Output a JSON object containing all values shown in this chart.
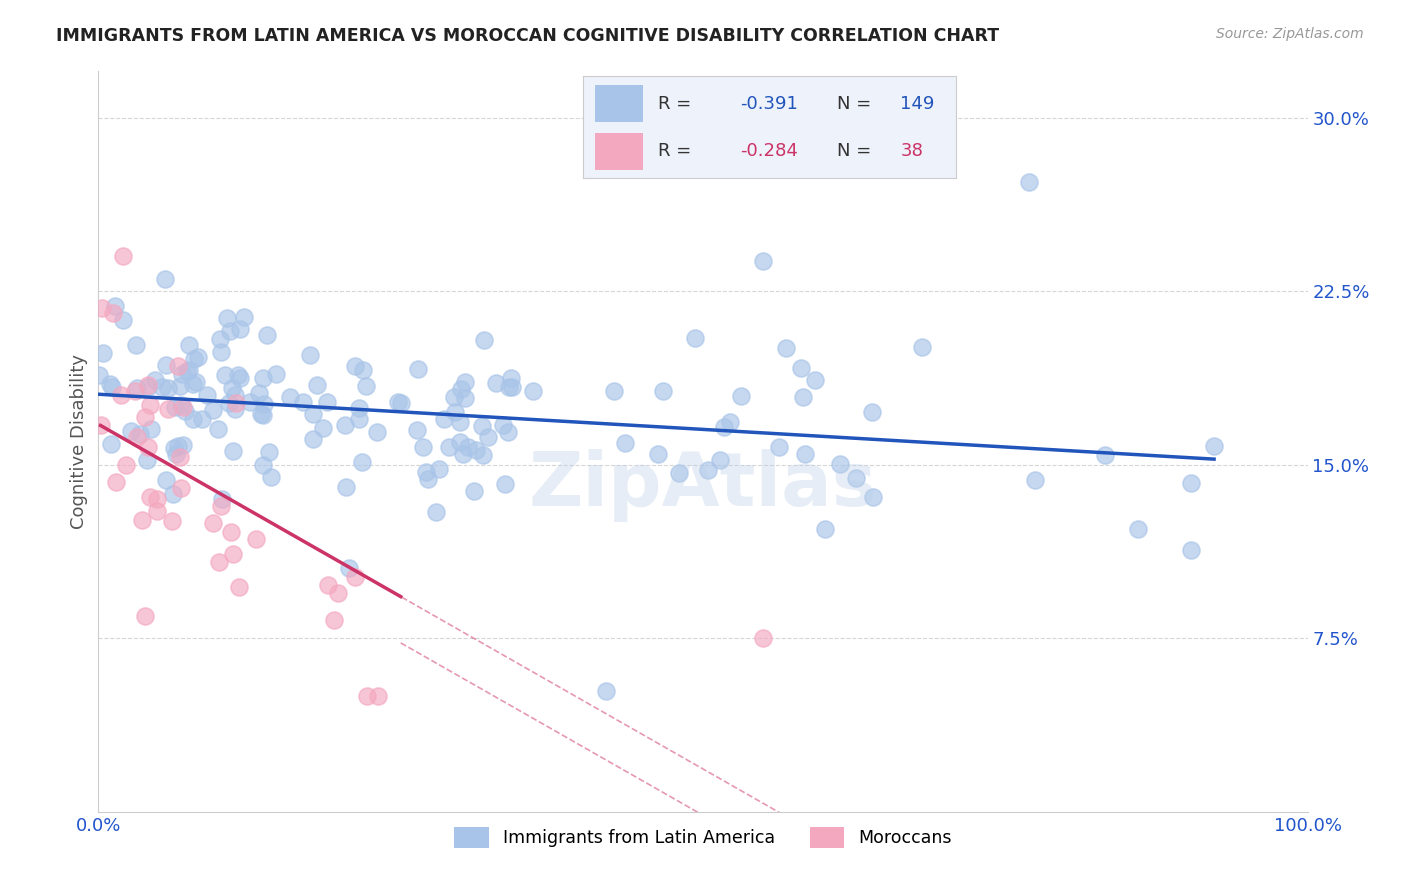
{
  "title": "IMMIGRANTS FROM LATIN AMERICA VS MOROCCAN COGNITIVE DISABILITY CORRELATION CHART",
  "source_text": "Source: ZipAtlas.com",
  "ylabel": "Cognitive Disability",
  "xlim": [
    0.0,
    1.0
  ],
  "ylim": [
    0.0,
    0.32
  ],
  "yticks": [
    0.075,
    0.15,
    0.225,
    0.3
  ],
  "ytick_labels": [
    "7.5%",
    "15.0%",
    "22.5%",
    "30.0%"
  ],
  "xtick_labels": [
    "0.0%",
    "100.0%"
  ],
  "blue_R": -0.391,
  "blue_N": 149,
  "pink_R": -0.284,
  "pink_N": 38,
  "blue_color": "#a8c4e8",
  "pink_color": "#f4a8c0",
  "blue_line_color": "#2255bb",
  "pink_line_color": "#cc3366",
  "watermark": "ZipAtlas",
  "title_color": "#222222",
  "axis_label_color": "#555555",
  "tick_color": "#2255cc",
  "grid_color": "#cccccc",
  "background_color": "#ffffff",
  "legend_bg": "#eef2fa"
}
